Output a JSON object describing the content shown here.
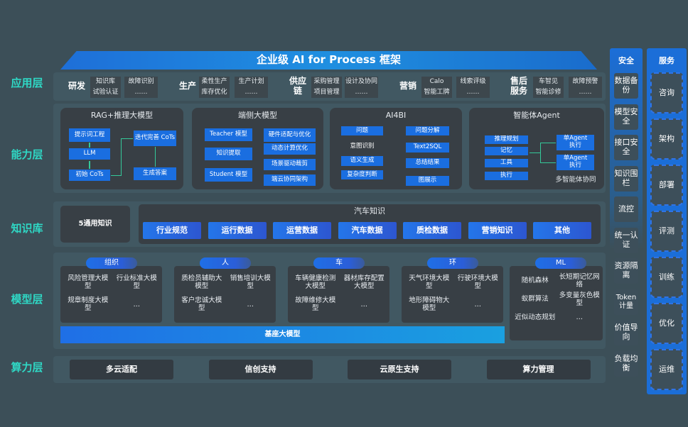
{
  "title": "企业级 AI for Process 框架",
  "layers": [
    "应用层",
    "能力层",
    "知识库",
    "模型层",
    "算力层"
  ],
  "app": [
    {
      "name": "研发",
      "items": [
        "知识库",
        "故障识别",
        "试验认证",
        "……"
      ]
    },
    {
      "name": "生产",
      "items": [
        "柔性生产",
        "生产计划",
        "库存优化",
        "……"
      ]
    },
    {
      "name": "供应链",
      "items": [
        "采购管理",
        "设计及协同",
        "项目管理",
        "……"
      ]
    },
    {
      "name": "营销",
      "items": [
        "Calo",
        "线索评级",
        "智能工牌",
        "……"
      ]
    },
    {
      "name": "售后服务",
      "items": [
        "车智见",
        "故障预警",
        "智能诊修",
        "……"
      ]
    }
  ],
  "capability": {
    "rag": {
      "title": "RAG+推理大模型",
      "items": [
        "提示词工程",
        "LLM",
        "初始 CoTs",
        "迭代完善 CoTs",
        "生成答案"
      ]
    },
    "edge": {
      "title": "端侧大模型",
      "items": [
        "Teacher 模型",
        "知识提取",
        "Student 模型",
        "硬件适配与优化",
        "动态计算优化",
        "场景驱动裁剪",
        "端云协同架构"
      ]
    },
    "ai4bi": {
      "title": "AI4BI",
      "items": [
        "问题",
        "意图识别",
        "语义生成",
        "复杂度判断",
        "问题分解",
        "Text2SQL",
        "总结结果",
        "图展示"
      ]
    },
    "agent": {
      "title": "智能体Agent",
      "items": [
        "推理规划",
        "记忆",
        "工具",
        "执行",
        "单Agent 执行",
        "单Agent 执行",
        "多智能体协同"
      ]
    }
  },
  "knowledge": {
    "general": "5通用知识",
    "auto_title": "汽车知识",
    "items": [
      "行业规范",
      "运行数据",
      "运营数据",
      "汽车数据",
      "质检数据",
      "营销知识",
      "其他"
    ]
  },
  "models": [
    {
      "name": "组织",
      "items": [
        "风险管理大模型",
        "行业标准大模型",
        "规章制度大模型",
        "…"
      ]
    },
    {
      "name": "人",
      "items": [
        "质检员辅助大模型",
        "销售培训大模型",
        "客户忠诚大模型",
        "…"
      ]
    },
    {
      "name": "车",
      "items": [
        "车辆健康检测大模型",
        "器材库存配置大模型",
        "故障维修大模型",
        "…"
      ]
    },
    {
      "name": "环",
      "items": [
        "天气环境大模型",
        "行驶环境大模型",
        "地形障碍物大模型",
        "…"
      ]
    },
    {
      "name": "ML",
      "items": [
        "随机森林",
        "长短期记忆网络",
        "蚁群算法",
        "多变量灰色模型",
        "近似动态规划",
        "…"
      ]
    }
  ],
  "base_model": "基座大模型",
  "compute": [
    "多云适配",
    "信创支持",
    "云原生支持",
    "算力管理"
  ],
  "security": {
    "title": "安全",
    "items": [
      "数据备份",
      "模型安全",
      "接口安全",
      "知识围栏",
      "流控",
      "统一认证",
      "资源隔离",
      "Token 计量",
      "价值导向",
      "负载均衡"
    ]
  },
  "service": {
    "title": "服务",
    "items": [
      "咨询",
      "架构",
      "部署",
      "评测",
      "训练",
      "优化",
      "运维"
    ]
  },
  "colors": {
    "accent": "#1a6ee0",
    "layer_label": "#2fd8c5",
    "background": "#3c4f58"
  }
}
